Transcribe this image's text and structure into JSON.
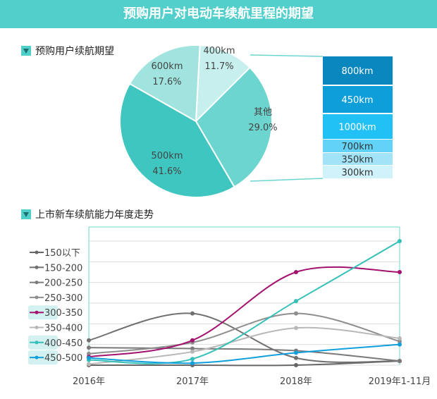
{
  "title": "预购用户对电动车续航里程的期望",
  "section1": "预购用户续航期望",
  "section2": "上市新车续航能力年度走势",
  "chart_data": [
    {
      "type": "pie",
      "slices": [
        {
          "label": "400km",
          "value": 11.7,
          "text": "11.7%",
          "color": "#c6efee"
        },
        {
          "label": "其他",
          "value": 29.0,
          "text": "29.0%",
          "color": "#6dd5cf"
        },
        {
          "label": "500km",
          "value": 41.6,
          "text": "41.6%",
          "color": "#3fc6c0"
        },
        {
          "label": "600km",
          "value": 17.6,
          "text": "17.6%",
          "color": "#a0e3df"
        }
      ],
      "breakdown_of": "其他",
      "breakdown": [
        {
          "label": "800km",
          "color": "#0b87c0"
        },
        {
          "label": "450km",
          "color": "#0e9fda"
        },
        {
          "label": "1000km",
          "color": "#22c1f5"
        },
        {
          "label": "700km",
          "color": "#62d3f7"
        },
        {
          "label": "350km",
          "color": "#a2e3f8"
        },
        {
          "label": "300km",
          "color": "#d0f2fb"
        }
      ]
    },
    {
      "type": "line",
      "categories": [
        "2016年",
        "2017年",
        "2018年",
        "2019年1-11月"
      ],
      "ylim": [
        0,
        6
      ],
      "grid": true,
      "legend": "left",
      "series": [
        {
          "name": "150以下",
          "color": "#666666",
          "values": [
            0,
            0,
            0,
            0.2
          ]
        },
        {
          "name": "150-200",
          "color": "#707070",
          "values": [
            1.2,
            2.5,
            0.35,
            0.2
          ]
        },
        {
          "name": "200-250",
          "color": "#7a7a7a",
          "values": [
            0.85,
            0.8,
            0.7,
            0.2
          ]
        },
        {
          "name": "250-300",
          "color": "#8e8e8e",
          "values": [
            0.55,
            1.1,
            2.5,
            1.15
          ]
        },
        {
          "name": "300-350",
          "color": "#a3116e",
          "values": [
            0.4,
            1.2,
            4.5,
            4.5
          ]
        },
        {
          "name": "350-400",
          "color": "#b8b8b8",
          "values": [
            0.05,
            0.65,
            1.8,
            1.3
          ]
        },
        {
          "name": "400-450",
          "color": "#35c0b8",
          "values": [
            0.25,
            0.3,
            3.1,
            6
          ]
        },
        {
          "name": "450-500",
          "color": "#119fdb",
          "values": [
            0.35,
            0.1,
            0.6,
            1.0
          ]
        }
      ]
    }
  ]
}
